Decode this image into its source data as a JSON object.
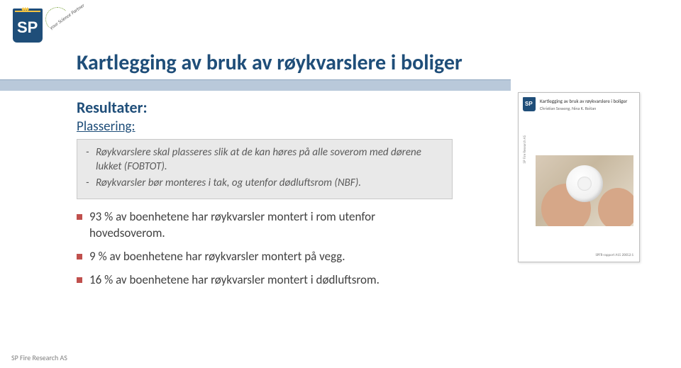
{
  "logo": {
    "text": "SP",
    "partner_label": "your Science Partner"
  },
  "title": "Kartlegging av bruk av røykvarslere i boliger",
  "subhead1": "Resultater:",
  "subhead2": "Plassering:",
  "box": {
    "line1": "Røykvarslere skal plasseres slik at de kan høres på alle soverom med dørene lukket (FOBTOT).",
    "line2": "Røykvarsler bør monteres i tak, og utenfor dødluftsrom (NBF)."
  },
  "bullets": {
    "b1": "93 % av boenhetene har røykvarsler montert i rom utenfor hovedsoverom.",
    "b2": "9 % av boenhetene har røykvarsler montert på vegg.",
    "b3": "16 % av boenhetene har røykvarsler montert i dødluftsrom."
  },
  "thumb": {
    "title": "Kartlegging av bruk av røykvarslere i boliger",
    "authors": "Christian Sesseng, Nina K. Reitan",
    "side": "SP Fire Research AS",
    "ref": "SPFR-rapport A15 20052:1"
  },
  "footer": "SP Fire Research AS",
  "colors": {
    "heading": "#1f4e79",
    "bar": "#b9c9da",
    "bullet": "#c0504d",
    "boxbg": "#e9e9e9",
    "boxtext": "#595959"
  }
}
